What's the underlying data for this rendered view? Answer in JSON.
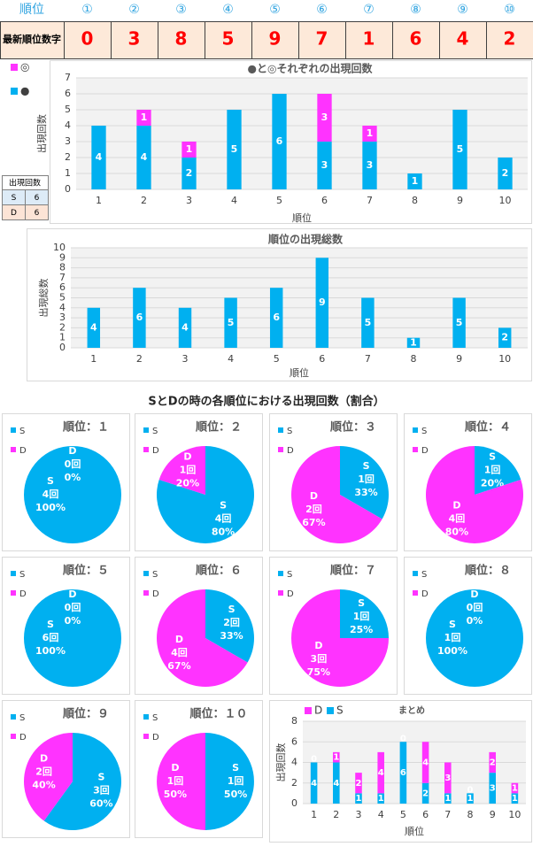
{
  "table": {
    "header": [
      "順位",
      "①",
      "②",
      "③",
      "④",
      "⑤",
      "⑥",
      "⑦",
      "⑧",
      "⑨",
      "⑩"
    ],
    "rows": [
      [
        "最新順位数字",
        0,
        3,
        8,
        5,
        9,
        7,
        1,
        6,
        4,
        2
      ]
    ]
  },
  "count_table": {
    "header": "出現回数",
    "rows": [
      [
        "S",
        6
      ],
      [
        "D",
        6
      ]
    ]
  },
  "section_title": "SとDの時の各順位における出現回数（割合）",
  "chart_data": [
    {
      "type": "bar",
      "stacked": true,
      "title": "●と◎それぞれの出現回数",
      "x_label": "順位",
      "y_label": "出現回数",
      "categories": [
        "1",
        "2",
        "3",
        "4",
        "5",
        "6",
        "7",
        "8",
        "9",
        "10"
      ],
      "series": [
        {
          "name": "●",
          "color": "#00b0f0",
          "values": [
            4,
            4,
            2,
            5,
            6,
            3,
            3,
            1,
            5,
            2
          ]
        },
        {
          "name": "◎",
          "color": "#ff33ff",
          "values": [
            0,
            1,
            1,
            0,
            0,
            3,
            1,
            0,
            0,
            0
          ]
        }
      ],
      "ylim": [
        0,
        7
      ],
      "yticks": [
        0,
        1,
        2,
        3,
        4,
        5,
        6,
        7
      ],
      "grid": true,
      "legend": "left",
      "zero_labels": false
    },
    {
      "type": "bar",
      "title": "順位の出現総数",
      "x_label": "順位",
      "y_label": "出現総数",
      "categories": [
        "1",
        "2",
        "3",
        "4",
        "5",
        "6",
        "7",
        "8",
        "9",
        "10"
      ],
      "values": [
        4,
        6,
        4,
        5,
        6,
        9,
        5,
        1,
        5,
        2
      ],
      "color": "#00b0f0",
      "ylim": [
        0,
        10
      ],
      "yticks": [
        0,
        1,
        2,
        3,
        4,
        5,
        6,
        7,
        8,
        9,
        10
      ],
      "grid": true
    },
    {
      "type": "pie",
      "title": "順位：１",
      "categories": [
        "S",
        "D"
      ],
      "colors": [
        "#00b0f0",
        "#ff33ff"
      ],
      "values": [
        4,
        0
      ],
      "value_labels": [
        "4回",
        "0回"
      ],
      "percents": [
        100,
        0
      ],
      "percent_labels": [
        "100%",
        "0%"
      ]
    },
    {
      "type": "pie",
      "title": "順位：２",
      "categories": [
        "S",
        "D"
      ],
      "colors": [
        "#00b0f0",
        "#ff33ff"
      ],
      "values": [
        4,
        1
      ],
      "value_labels": [
        "4回",
        "1回"
      ],
      "percents": [
        80,
        20
      ],
      "percent_labels": [
        "80%",
        "20%"
      ]
    },
    {
      "type": "pie",
      "title": "順位：３",
      "categories": [
        "S",
        "D"
      ],
      "colors": [
        "#00b0f0",
        "#ff33ff"
      ],
      "values": [
        1,
        2
      ],
      "value_labels": [
        "1回",
        "2回"
      ],
      "percents": [
        33,
        67
      ],
      "percent_labels": [
        "33%",
        "67%"
      ]
    },
    {
      "type": "pie",
      "title": "順位：４",
      "categories": [
        "S",
        "D"
      ],
      "colors": [
        "#00b0f0",
        "#ff33ff"
      ],
      "values": [
        1,
        4
      ],
      "value_labels": [
        "1回",
        "4回"
      ],
      "percents": [
        20,
        80
      ],
      "percent_labels": [
        "20%",
        "80%"
      ]
    },
    {
      "type": "pie",
      "title": "順位：５",
      "categories": [
        "S",
        "D"
      ],
      "colors": [
        "#00b0f0",
        "#ff33ff"
      ],
      "values": [
        6,
        0
      ],
      "value_labels": [
        "6回",
        "0回"
      ],
      "percents": [
        100,
        0
      ],
      "percent_labels": [
        "100%",
        "0%"
      ]
    },
    {
      "type": "pie",
      "title": "順位：６",
      "categories": [
        "S",
        "D"
      ],
      "colors": [
        "#00b0f0",
        "#ff33ff"
      ],
      "values": [
        2,
        4
      ],
      "value_labels": [
        "2回",
        "4回"
      ],
      "percents": [
        33,
        67
      ],
      "percent_labels": [
        "33%",
        "67%"
      ]
    },
    {
      "type": "pie",
      "title": "順位：７",
      "categories": [
        "S",
        "D"
      ],
      "colors": [
        "#00b0f0",
        "#ff33ff"
      ],
      "values": [
        1,
        3
      ],
      "value_labels": [
        "1回",
        "3回"
      ],
      "percents": [
        25,
        75
      ],
      "percent_labels": [
        "25%",
        "75%"
      ]
    },
    {
      "type": "pie",
      "title": "順位：８",
      "categories": [
        "S",
        "D"
      ],
      "colors": [
        "#00b0f0",
        "#ff33ff"
      ],
      "values": [
        1,
        0
      ],
      "value_labels": [
        "1回",
        "0回"
      ],
      "percents": [
        100,
        0
      ],
      "percent_labels": [
        "100%",
        "0%"
      ]
    },
    {
      "type": "pie",
      "title": "順位：９",
      "categories": [
        "S",
        "D"
      ],
      "colors": [
        "#00b0f0",
        "#ff33ff"
      ],
      "values": [
        3,
        2
      ],
      "value_labels": [
        "3回",
        "2回"
      ],
      "percents": [
        60,
        40
      ],
      "percent_labels": [
        "60%",
        "40%"
      ]
    },
    {
      "type": "pie",
      "title": "順位：１０",
      "categories": [
        "S",
        "D"
      ],
      "colors": [
        "#00b0f0",
        "#ff33ff"
      ],
      "values": [
        1,
        1
      ],
      "value_labels": [
        "1回",
        "1回"
      ],
      "percents": [
        50,
        50
      ],
      "percent_labels": [
        "50%",
        "50%"
      ]
    },
    {
      "type": "bar",
      "stacked": true,
      "title": "まとめ",
      "x_label": "順位",
      "y_label": "出現回数",
      "categories": [
        "1",
        "2",
        "3",
        "4",
        "5",
        "6",
        "7",
        "8",
        "9",
        "10"
      ],
      "series": [
        {
          "name": "S",
          "color": "#00b0f0",
          "values": [
            4,
            4,
            1,
            1,
            6,
            2,
            1,
            1,
            3,
            1
          ]
        },
        {
          "name": "D",
          "color": "#ff33ff",
          "values": [
            0,
            1,
            2,
            4,
            0,
            4,
            3,
            0,
            2,
            1
          ]
        }
      ],
      "ylim": [
        0,
        8
      ],
      "yticks": [
        0,
        2,
        4,
        6,
        8
      ],
      "grid": true,
      "legend": "top",
      "zero_labels": true
    }
  ]
}
